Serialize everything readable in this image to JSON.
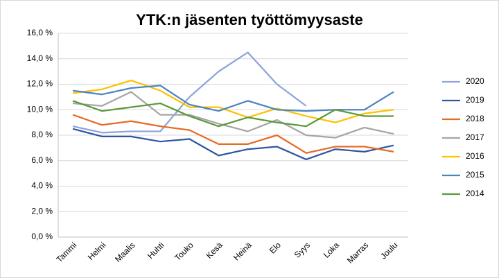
{
  "chart_data": {
    "type": "line",
    "title": "YTK:n jäsenten työttömyysaste",
    "categories": [
      "Tammi",
      "Helmi",
      "Maalis",
      "Huhti",
      "Touko",
      "Kesä",
      "Heinä",
      "Elo",
      "Syys",
      "Loka",
      "Marras",
      "Joulu"
    ],
    "series": [
      {
        "name": "2020",
        "color": "#8fa3dc",
        "values": [
          8.7,
          8.2,
          8.3,
          8.3,
          11.0,
          13.0,
          14.5,
          12.0,
          10.3,
          null,
          null,
          null
        ]
      },
      {
        "name": "2019",
        "color": "#2f55a4",
        "values": [
          8.5,
          7.9,
          7.9,
          7.5,
          7.7,
          6.4,
          6.9,
          7.1,
          6.1,
          6.9,
          6.7,
          7.2
        ]
      },
      {
        "name": "2018",
        "color": "#e46c27",
        "values": [
          9.6,
          8.8,
          9.1,
          8.7,
          8.4,
          7.3,
          7.3,
          8.0,
          6.6,
          7.1,
          7.1,
          6.7
        ]
      },
      {
        "name": "2017",
        "color": "#a5a5a5",
        "values": [
          10.5,
          10.3,
          11.4,
          9.6,
          9.6,
          8.9,
          8.3,
          9.2,
          8.0,
          7.8,
          8.6,
          8.1
        ]
      },
      {
        "name": "2016",
        "color": "#ffc000",
        "values": [
          11.3,
          11.6,
          12.3,
          11.5,
          10.2,
          10.2,
          9.4,
          10.1,
          9.5,
          9.0,
          9.7,
          10.0
        ]
      },
      {
        "name": "2015",
        "color": "#4a86c0",
        "values": [
          11.5,
          11.2,
          11.7,
          11.9,
          10.4,
          9.9,
          10.7,
          10.0,
          9.9,
          10.0,
          10.0,
          11.4
        ]
      },
      {
        "name": "2014",
        "color": "#5a9a3a",
        "values": [
          10.7,
          9.9,
          10.2,
          10.5,
          9.5,
          8.7,
          9.4,
          9.0,
          8.7,
          10.0,
          9.5,
          9.5
        ]
      }
    ],
    "ylim": [
      0,
      16
    ],
    "yticks": [
      {
        "value": 0,
        "label": "0,0 %"
      },
      {
        "value": 2,
        "label": "2,0 %"
      },
      {
        "value": 4,
        "label": "4,0 %"
      },
      {
        "value": 6,
        "label": "6,0 %"
      },
      {
        "value": 8,
        "label": "8,0 %"
      },
      {
        "value": 10,
        "label": "10,0 %"
      },
      {
        "value": 12,
        "label": "12,0 %"
      },
      {
        "value": 14,
        "label": "14,0 %"
      },
      {
        "value": 16,
        "label": "16,0 %"
      }
    ],
    "grid": true,
    "legend": "right"
  }
}
